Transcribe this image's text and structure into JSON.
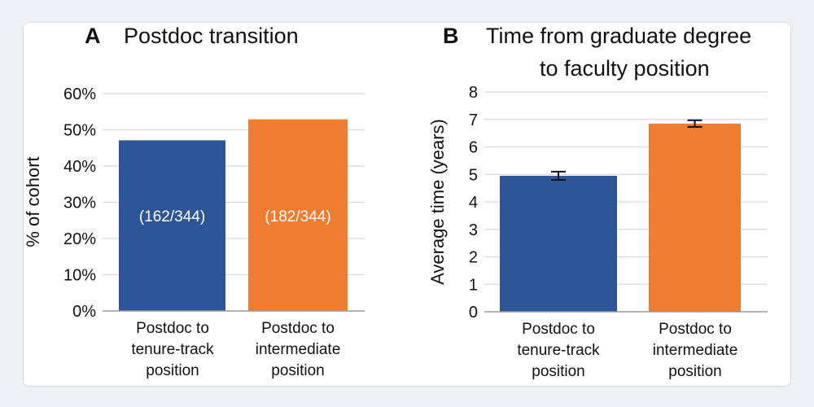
{
  "colors": {
    "blue": "#2e5597",
    "orange": "#ef7d31",
    "grid": "#d9d9d9",
    "axis": "#9a9a9a",
    "text": "#111111"
  },
  "chart_data": [
    {
      "id": "A",
      "type": "bar",
      "panel_letter": "A",
      "title_lines": [
        "Postdoc transition"
      ],
      "ylabel": "% of cohort",
      "xlabel": "",
      "ylim": [
        0,
        60
      ],
      "yticks": [
        0,
        10,
        20,
        30,
        40,
        50,
        60
      ],
      "ytick_labels": [
        "0%",
        "10%",
        "20%",
        "30%",
        "40%",
        "50%",
        "60%"
      ],
      "categories": [
        [
          "Postdoc to",
          "tenure-track",
          "position"
        ],
        [
          "Postdoc to",
          "intermediate",
          "position"
        ]
      ],
      "values": [
        47.1,
        52.9
      ],
      "bar_labels": [
        "(162/344)",
        "(182/344)"
      ],
      "grid": true
    },
    {
      "id": "B",
      "type": "bar",
      "panel_letter": "B",
      "title_lines": [
        "Time from graduate degree",
        "to faculty position"
      ],
      "ylabel": "Average time (years)",
      "xlabel": "",
      "ylim": [
        0,
        8
      ],
      "yticks": [
        0,
        1,
        2,
        3,
        4,
        5,
        6,
        7,
        8
      ],
      "ytick_labels": [
        "0",
        "1",
        "2",
        "3",
        "4",
        "5",
        "6",
        "7",
        "8"
      ],
      "categories": [
        [
          "Postdoc to",
          "tenure-track",
          "position"
        ],
        [
          "Postdoc to",
          "intermediate",
          "position"
        ]
      ],
      "values": [
        4.95,
        6.85
      ],
      "errors": [
        0.15,
        0.12
      ],
      "grid": true
    }
  ]
}
